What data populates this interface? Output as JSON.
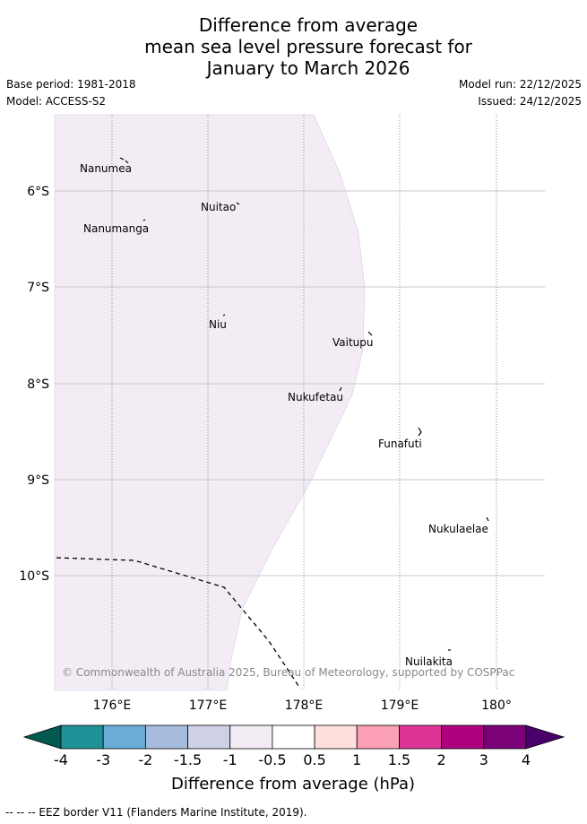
{
  "title": {
    "line1": "Difference from average",
    "line2": "mean sea level pressure forecast for",
    "line3": "January to March 2026"
  },
  "meta": {
    "base_period": "Base period: 1981-2018",
    "model": "Model: ACCESS-S2",
    "model_run": "Model run: 22/12/2025",
    "issued": "Issued: 24/12/2025"
  },
  "map": {
    "lat_labels": [
      "6°S",
      "7°S",
      "8°S",
      "9°S",
      "10°S"
    ],
    "lon_labels": [
      "176°E",
      "177°E",
      "178°E",
      "179°E",
      "180°"
    ],
    "places": [
      "Nanumea",
      "Nuitao",
      "Nanumanga",
      "Niu",
      "Vaitupu",
      "Nukufetau",
      "Funafuti",
      "Nukulaelae",
      "Nuilakita"
    ],
    "anomaly_region_class": "-1 to -0.5 hPa",
    "copyright": "© Commonwealth of Australia 2025, Bureau of Meteorology, supported by COSPPac"
  },
  "colorbar": {
    "ticks": [
      "-4",
      "-3",
      "-2",
      "-1.5",
      "-1",
      "-0.5",
      "0.5",
      "1",
      "1.5",
      "2",
      "3",
      "4"
    ],
    "colors": [
      "#005a52",
      "#1f9297",
      "#6aacd6",
      "#a6bcde",
      "#ced0e6",
      "#f3ecf5",
      "#ffffff",
      "#fde0dd",
      "#fa9fb5",
      "#dd3497",
      "#ae017e",
      "#7a0177",
      "#49006a"
    ],
    "label": "Difference from average (hPa)"
  },
  "footer": "-- -- -- EEZ border V11 (Flanders Marine Institute, 2019)."
}
